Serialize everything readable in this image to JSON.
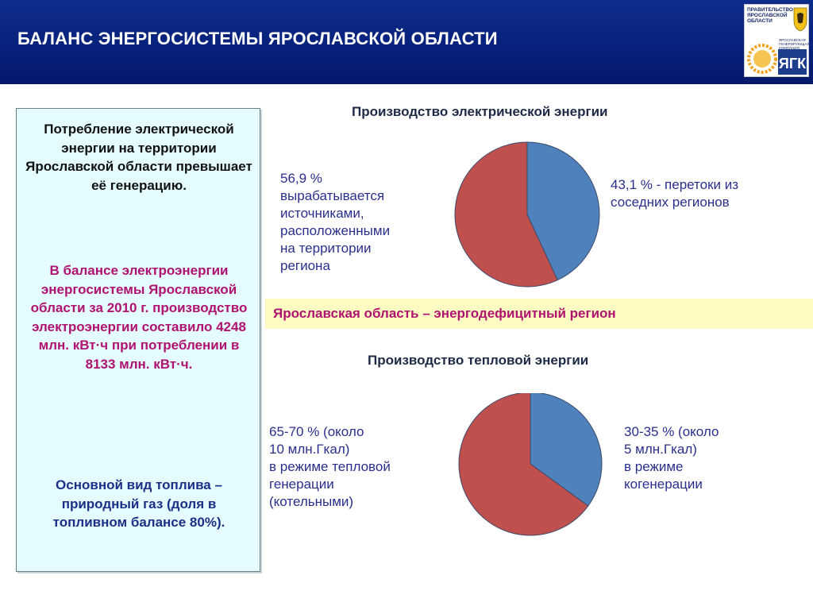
{
  "header": {
    "title": "БАЛАНС ЭНЕРГОСИСТЕМЫ ЯРОСЛАВСКОЙ ОБЛАСТИ",
    "logo_text_main": "ПРАВИТЕЛЬСТВО\nЯРОСЛАВСКОЙ\nОБЛАСТИ",
    "logo_text_sub": "ЯРОСЛАВСКАЯ\nГЕНЕРИРУЮЩАЯ\nКОМПАНИЯ",
    "logo_mark": "ЯГК"
  },
  "left_panel": {
    "paragraph1": "Потребление электрической энергии на территории Ярославской области превышает её генерацию.",
    "paragraph2": "В балансе электроэнергии энергосистемы Ярославской области за 2010 г. производство электроэнергии составило 4248 млн. кВт·ч при потреблении в 8133 млн. кВт·ч.",
    "paragraph3": "Основной вид топлива – природный газ (доля в топливном балансе 80%)."
  },
  "electric": {
    "title": "Производство электрической энергии",
    "label_local": "56,9 %\nвырабатывается\nисточниками,\nрасположенными\nна территории\nрегиона",
    "label_import": "43,1 % - перетоки из\nсоседних регионов"
  },
  "banner": {
    "text": "Ярославская область – энергодефицитный регион"
  },
  "heat": {
    "title": "Производство тепловой энергии",
    "label_heat": "65-70 % (около\n10 млн.Гкал)\nв режиме тепловой\nгенерации\n(котельными)",
    "label_cogen": "30-35 % (около\n5 млн.Гкал)\nв режиме\nкогенерации"
  },
  "colors": {
    "header_bg": "#06207a",
    "slice_blue": "#4f81bd",
    "slice_red": "#c0504d",
    "accent_magenta": "#b0126f",
    "panel_bg": "#e4fbff",
    "banner_bg": "#fdfbc2"
  },
  "chart_data": [
    {
      "type": "pie",
      "title": "Производство электрической энергии",
      "series": [
        {
          "name": "перетоки из соседних регионов",
          "value": 43.1,
          "color": "#4f81bd"
        },
        {
          "name": "вырабатывается источниками, расположенными на территории региона",
          "value": 56.9,
          "color": "#c0504d"
        }
      ]
    },
    {
      "type": "pie",
      "title": "Производство тепловой энергии",
      "series": [
        {
          "name": "в режиме когенерации",
          "value": 35,
          "color": "#4f81bd"
        },
        {
          "name": "в режиме тепловой генерации (котельными)",
          "value": 65,
          "color": "#c0504d"
        }
      ]
    }
  ]
}
